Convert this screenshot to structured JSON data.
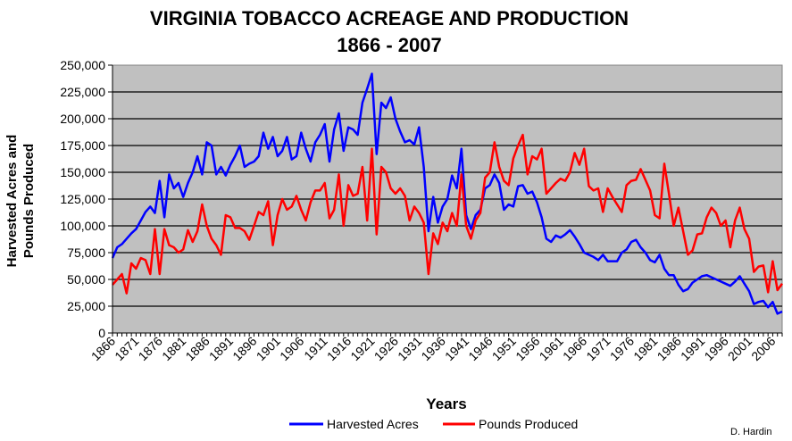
{
  "chart_data": {
    "type": "line",
    "title": "VIRGINIA TOBACCO ACREAGE AND PRODUCTION",
    "subtitle": "1866 - 2007",
    "xlabel": "Years",
    "ylabel": [
      "Harvested Acres and",
      "Pounds Produced"
    ],
    "ylim": [
      0,
      250000
    ],
    "yticks": [
      "0",
      "25,000",
      "50,000",
      "75,000",
      "100,000",
      "125,000",
      "150,000",
      "175,000",
      "200,000",
      "225,000",
      "250,000"
    ],
    "xstart": 1866,
    "xticks": [
      "1866",
      "1871",
      "1876",
      "1881",
      "1886",
      "1891",
      "1896",
      "1901",
      "1906",
      "1911",
      "1916",
      "1921",
      "1926",
      "1931",
      "1936",
      "1941",
      "1946",
      "1951",
      "1956",
      "1961",
      "1966",
      "1971",
      "1976",
      "1981",
      "1986",
      "1991",
      "1996",
      "2001",
      "2006"
    ],
    "grid": true,
    "legend_position": "bottom",
    "credit": "D. Hardin",
    "series": [
      {
        "name": "Harvested Acres",
        "color": "#0000FF",
        "values": [
          70000,
          80000,
          83000,
          88000,
          93000,
          97000,
          105000,
          113000,
          118000,
          112000,
          142000,
          108000,
          148000,
          135000,
          140000,
          127000,
          140000,
          150000,
          165000,
          148000,
          178000,
          175000,
          148000,
          155000,
          147000,
          157000,
          165000,
          175000,
          155000,
          158000,
          160000,
          165000,
          187000,
          172000,
          183000,
          165000,
          170000,
          183000,
          162000,
          165000,
          187000,
          172000,
          160000,
          178000,
          185000,
          195000,
          160000,
          190000,
          205000,
          170000,
          192000,
          190000,
          185000,
          215000,
          228000,
          242000,
          167000,
          215000,
          210000,
          220000,
          200000,
          188000,
          178000,
          180000,
          176000,
          192000,
          155000,
          95000,
          127000,
          103000,
          118000,
          125000,
          147000,
          135000,
          172000,
          110000,
          97000,
          110000,
          115000,
          135000,
          138000,
          148000,
          140000,
          115000,
          120000,
          118000,
          137000,
          138000,
          130000,
          132000,
          122000,
          108000,
          88000,
          85000,
          91000,
          89000,
          92000,
          96000,
          90000,
          83000,
          75000,
          73000,
          71000,
          68000,
          73000,
          67000,
          67000,
          67000,
          75000,
          78000,
          85000,
          87000,
          80000,
          75000,
          68000,
          66000,
          73000,
          60000,
          54000,
          54000,
          45000,
          39000,
          41000,
          47000,
          50000,
          53000,
          54000,
          52000,
          50000,
          48000,
          46000,
          44000,
          48000,
          53000,
          46000,
          39000,
          27000,
          29000,
          30000,
          24000,
          29000,
          18000,
          20000
        ]
      },
      {
        "name": "Pounds Produced",
        "color": "#FF0000",
        "values": [
          45000,
          50000,
          55000,
          37000,
          65000,
          60000,
          70000,
          68000,
          55000,
          97000,
          55000,
          97000,
          82000,
          80000,
          75000,
          78000,
          96000,
          85000,
          95000,
          120000,
          100000,
          88000,
          82000,
          73000,
          110000,
          108000,
          98000,
          98000,
          95000,
          87000,
          100000,
          113000,
          110000,
          123000,
          82000,
          110000,
          125000,
          115000,
          118000,
          128000,
          115000,
          105000,
          122000,
          133000,
          133000,
          140000,
          107000,
          115000,
          148000,
          100000,
          138000,
          128000,
          130000,
          155000,
          105000,
          172000,
          92000,
          155000,
          150000,
          135000,
          130000,
          135000,
          128000,
          105000,
          118000,
          112000,
          103000,
          55000,
          93000,
          83000,
          103000,
          95000,
          112000,
          100000,
          148000,
          100000,
          88000,
          105000,
          112000,
          145000,
          150000,
          178000,
          155000,
          142000,
          138000,
          163000,
          175000,
          185000,
          148000,
          165000,
          162000,
          172000,
          130000,
          135000,
          140000,
          144000,
          142000,
          150000,
          168000,
          157000,
          172000,
          137000,
          133000,
          135000,
          113000,
          135000,
          127000,
          120000,
          113000,
          138000,
          142000,
          143000,
          153000,
          143000,
          133000,
          110000,
          107000,
          158000,
          130000,
          100000,
          117000,
          95000,
          73000,
          77000,
          92000,
          93000,
          108000,
          117000,
          112000,
          100000,
          105000,
          80000,
          105000,
          117000,
          97000,
          88000,
          57000,
          62000,
          63000,
          38000,
          67000,
          40000,
          46000
        ]
      }
    ]
  }
}
